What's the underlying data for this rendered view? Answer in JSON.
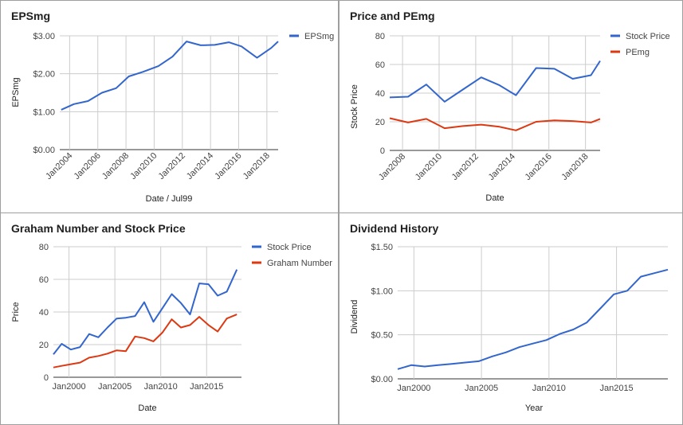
{
  "chart_data": [
    {
      "type": "line",
      "title": "EPSmg",
      "xlabel": "Date / Jul99",
      "ylabel": "EPSmg",
      "x_tick_labels": [
        "Jan2004",
        "Jan2006",
        "Jan2008",
        "Jan2010",
        "Jan2012",
        "Jan2014",
        "Jan2016",
        "Jan2018"
      ],
      "y_tick_labels": [
        "$0.00",
        "$1.00",
        "$2.00",
        "$3.00"
      ],
      "xlim": [
        2003.3,
        2018.8
      ],
      "ylim": [
        0,
        3
      ],
      "grid": true,
      "legend_position": "right",
      "x": [
        2003.4,
        2004.3,
        2005.3,
        2006.3,
        2007.3,
        2008.2,
        2009.2,
        2010.3,
        2011.3,
        2012.3,
        2013.3,
        2014.3,
        2015.3,
        2016.2,
        2017.3,
        2018.3,
        2018.8
      ],
      "series": [
        {
          "name": "EPSmg",
          "color": "#3366cc",
          "values": [
            1.05,
            1.2,
            1.28,
            1.5,
            1.62,
            1.93,
            2.05,
            2.2,
            2.45,
            2.85,
            2.75,
            2.76,
            2.83,
            2.72,
            2.42,
            2.68,
            2.85
          ]
        }
      ]
    },
    {
      "type": "line",
      "title": "Price and PEmg",
      "xlabel": "Date",
      "ylabel": "Stock Price",
      "x_tick_labels": [
        "Jan2008",
        "Jan2010",
        "Jan2012",
        "Jan2014",
        "Jan2016",
        "Jan2018"
      ],
      "y_tick_labels": [
        "0",
        "20",
        "40",
        "60",
        "80"
      ],
      "xlim": [
        2007.3,
        2018.8
      ],
      "ylim": [
        0,
        80
      ],
      "grid": true,
      "legend_position": "right",
      "x": [
        2007.3,
        2008.3,
        2009.3,
        2010.3,
        2011.3,
        2012.3,
        2013.3,
        2014.2,
        2015.3,
        2016.3,
        2017.3,
        2018.3,
        2018.8
      ],
      "series": [
        {
          "name": "Stock Price",
          "color": "#3366cc",
          "values": [
            37,
            37.5,
            46,
            34,
            42.5,
            51,
            45.5,
            38.5,
            57.5,
            57,
            50,
            52.5,
            62.5
          ]
        },
        {
          "name": "PEmg",
          "color": "#dc3912",
          "values": [
            22.5,
            19.5,
            22,
            15.5,
            17,
            18,
            16.5,
            14,
            20,
            21,
            20.5,
            19.5,
            22
          ]
        }
      ]
    },
    {
      "type": "line",
      "title": "Graham Number and Stock Price",
      "xlabel": "Date",
      "ylabel": "Price",
      "x_tick_labels": [
        "Jan2000",
        "Jan2005",
        "Jan2010",
        "Jan2015"
      ],
      "y_tick_labels": [
        "0",
        "20",
        "40",
        "60",
        "80"
      ],
      "xlim": [
        1998.3,
        2018.8
      ],
      "ylim": [
        0,
        80
      ],
      "grid": true,
      "legend_position": "right",
      "series": [
        {
          "name": "Stock Price",
          "color": "#3366cc",
          "x": [
            1998.3,
            1999.2,
            2000.2,
            2001.2,
            2002.2,
            2003.2,
            2004.2,
            2005.2,
            2006.2,
            2007.2,
            2008.2,
            2009.2,
            2010.2,
            2011.2,
            2012.2,
            2013.2,
            2014.2,
            2015.2,
            2016.2,
            2017.2,
            2018.3
          ],
          "values": [
            14,
            20.5,
            17,
            18.5,
            26.5,
            24.5,
            30.5,
            36,
            36.5,
            37.5,
            46,
            34,
            42.5,
            51,
            45.5,
            38.5,
            57.5,
            57,
            50,
            52.5,
            66
          ]
        },
        {
          "name": "Graham Number",
          "color": "#dc3912",
          "x": [
            1998.3,
            1999.2,
            2000.2,
            2001.2,
            2002.2,
            2003.2,
            2004.2,
            2005.2,
            2006.2,
            2007.2,
            2008.2,
            2009.2,
            2010.2,
            2011.2,
            2012.2,
            2013.2,
            2014.2,
            2015.2,
            2016.2,
            2017.2,
            2018.3
          ],
          "values": [
            6,
            7,
            8,
            9,
            12,
            13,
            14.5,
            16.5,
            16,
            25,
            24,
            22,
            27.5,
            35.5,
            30.5,
            32,
            37,
            32,
            28,
            36,
            38.5
          ]
        }
      ]
    },
    {
      "type": "line",
      "title": "Dividend History",
      "xlabel": "Year",
      "ylabel": "Dividend",
      "x_tick_labels": [
        "Jan2000",
        "Jan2005",
        "Jan2010",
        "Jan2015"
      ],
      "y_tick_labels": [
        "$0.00",
        "$0.50",
        "$1.00",
        "$1.50"
      ],
      "xlim": [
        1998.8,
        2018.8
      ],
      "ylim": [
        0,
        1.5
      ],
      "grid": true,
      "legend_position": "none",
      "x": [
        1998.8,
        1999.8,
        2000.8,
        2001.8,
        2002.8,
        2003.8,
        2004.8,
        2005.8,
        2006.8,
        2007.8,
        2008.8,
        2009.8,
        2010.8,
        2011.8,
        2012.8,
        2013.8,
        2014.8,
        2015.8,
        2016.8,
        2017.8,
        2018.8
      ],
      "series": [
        {
          "name": "Dividend",
          "color": "#3366cc",
          "values": [
            0.11,
            0.155,
            0.14,
            0.155,
            0.17,
            0.185,
            0.2,
            0.255,
            0.3,
            0.36,
            0.4,
            0.44,
            0.51,
            0.56,
            0.64,
            0.8,
            0.96,
            1.0,
            1.16,
            1.2,
            1.24
          ]
        }
      ]
    }
  ]
}
